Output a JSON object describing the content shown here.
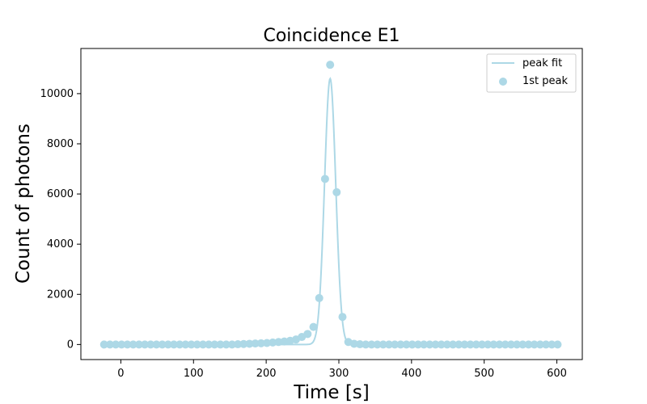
{
  "chart_data": {
    "type": "scatter",
    "title": "Coincidence E1",
    "xlabel": "Time [s]",
    "ylabel": "Count of photons",
    "xlim": [
      -55,
      635
    ],
    "ylim": [
      -600,
      11800
    ],
    "xticks": [
      0,
      100,
      200,
      300,
      400,
      500,
      600
    ],
    "yticks": [
      0,
      2000,
      4000,
      6000,
      8000,
      10000
    ],
    "grid": false,
    "legend_position": "top-right",
    "colors": {
      "series": "#add8e6",
      "axes": "#000000",
      "background": "#ffffff"
    },
    "series": [
      {
        "name": "peak fit",
        "type": "line",
        "center": 288,
        "sigma": 7.7,
        "amplitude": 10600,
        "x_range": [
          -23,
          602
        ]
      },
      {
        "name": "1st peak",
        "type": "scatter",
        "x": [
          -23,
          -15,
          -7,
          1,
          9,
          17,
          25,
          33,
          41,
          49,
          57,
          65,
          73,
          81,
          89,
          97,
          105,
          113,
          121,
          129,
          137,
          145,
          153,
          161,
          169,
          177,
          185,
          193,
          201,
          209,
          217,
          225,
          233,
          241,
          249,
          257,
          265,
          273,
          281,
          288,
          297,
          305,
          313,
          321,
          329,
          337,
          345,
          353,
          361,
          369,
          377,
          385,
          393,
          401,
          409,
          417,
          425,
          433,
          441,
          449,
          457,
          465,
          473,
          481,
          489,
          497,
          505,
          513,
          521,
          529,
          537,
          545,
          553,
          561,
          569,
          577,
          585,
          593,
          601
        ],
        "y": [
          0,
          0,
          0,
          0,
          0,
          0,
          0,
          0,
          0,
          0,
          0,
          0,
          0,
          0,
          0,
          0,
          0,
          0,
          0,
          0,
          0,
          0,
          0,
          10,
          20,
          30,
          40,
          50,
          60,
          80,
          100,
          120,
          150,
          200,
          300,
          420,
          700,
          1850,
          6600,
          11150,
          6070,
          1100,
          100,
          30,
          10,
          0,
          0,
          0,
          0,
          0,
          0,
          0,
          0,
          0,
          0,
          0,
          0,
          0,
          0,
          0,
          0,
          0,
          0,
          0,
          0,
          0,
          0,
          0,
          0,
          0,
          0,
          0,
          0,
          0,
          0,
          0,
          0,
          0,
          0
        ]
      }
    ]
  }
}
